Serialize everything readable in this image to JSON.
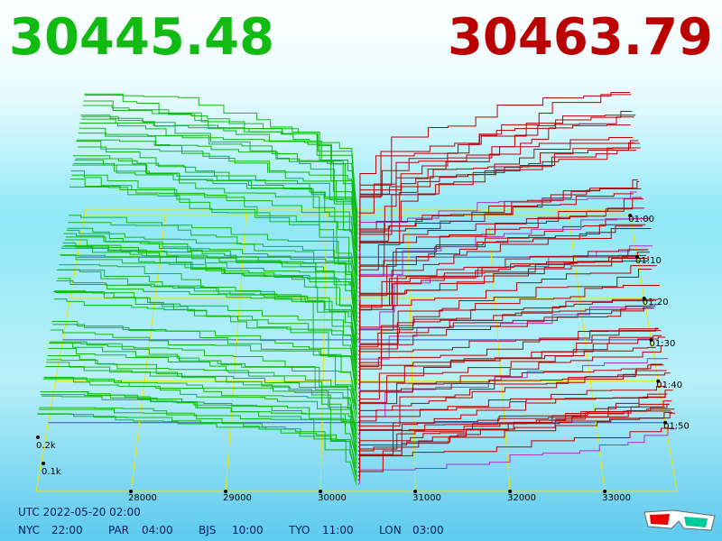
{
  "header": {
    "bid": "30445.48",
    "ask": "30463.79"
  },
  "price_axis": {
    "ticks": [
      28000,
      29000,
      30000,
      31000,
      32000,
      33000
    ],
    "lim": [
      27000,
      33760
    ]
  },
  "time_axis": {
    "ticks": [
      "01:00",
      "01:10",
      "01:20",
      "01:30",
      "01:40",
      "01:50"
    ]
  },
  "depth_axis": {
    "ticks": [
      "0.2k",
      "0.1k"
    ]
  },
  "footer": {
    "utc": "UTC 2022-05-20 02:00",
    "clocks": [
      {
        "city": "NYC",
        "time": "22:00"
      },
      {
        "city": "PAR",
        "time": "04:00"
      },
      {
        "city": "BJS",
        "time": "10:00"
      },
      {
        "city": "TYO",
        "time": "11:00"
      },
      {
        "city": "LON",
        "time": "03:00"
      }
    ]
  }
}
